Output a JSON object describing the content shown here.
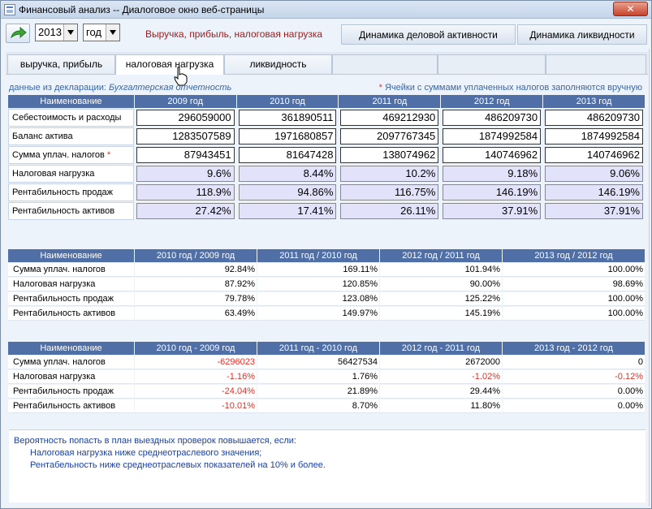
{
  "window": {
    "title": "Финансовый анализ -- Диалоговое окно веб-страницы",
    "close_label": "✕"
  },
  "toolbar": {
    "year_value": "2013",
    "period_value": "год",
    "tabs": [
      {
        "label": "Выручка, прибыль, налоговая нагрузка"
      },
      {
        "label": "Динамика деловой активности"
      },
      {
        "label": "Динамика ликвидности"
      }
    ]
  },
  "subtabs": [
    {
      "label": "выручка, прибыль"
    },
    {
      "label": "налоговая нагрузка"
    },
    {
      "label": "ликвидность"
    }
  ],
  "notes": {
    "left_prefix": "данные из декларации:",
    "left_source": "Бухгалтерская отчетность",
    "right_star": "*",
    "right_text": "Ячейки с суммами уплаченных налогов заполняются вручную"
  },
  "table1": {
    "headers": [
      "Наименование",
      "2009 год",
      "2010 год",
      "2011 год",
      "2012 год",
      "2013 год"
    ],
    "rows": [
      {
        "label": "Себестоимость и расходы",
        "star": "",
        "values": [
          "296059000",
          "361890511",
          "469212930",
          "486209730",
          "486209730"
        ]
      },
      {
        "label": "Баланс актива",
        "star": "",
        "values": [
          "1283507589",
          "1971680857",
          "2097767345",
          "1874992584",
          "1874992584"
        ]
      },
      {
        "label": "Сумма уплач. налогов",
        "star": "*",
        "values": [
          "87943451",
          "81647428",
          "138074962",
          "140746962",
          "140746962"
        ]
      },
      {
        "label": "Налоговая нагрузка",
        "star": "",
        "values": [
          "9.6%",
          "8.44%",
          "10.2%",
          "9.18%",
          "9.06%"
        ]
      },
      {
        "label": "Рентабильность продаж",
        "star": "",
        "values": [
          "118.9%",
          "94.86%",
          "116.75%",
          "146.19%",
          "146.19%"
        ]
      },
      {
        "label": "Рентабильность активов",
        "star": "",
        "values": [
          "27.42%",
          "17.41%",
          "26.11%",
          "37.91%",
          "37.91%"
        ]
      }
    ]
  },
  "table2": {
    "headers": [
      "Наименование",
      "2010 год / 2009 год",
      "2011 год / 2010 год",
      "2012 год / 2011 год",
      "2013 год / 2012 год"
    ],
    "rows": [
      {
        "label": "Сумма уплач. налогов",
        "values": [
          "92.84%",
          "169.11%",
          "101.94%",
          "100.00%"
        ]
      },
      {
        "label": "Налоговая нагрузка",
        "values": [
          "87.92%",
          "120.85%",
          "90.00%",
          "98.69%"
        ]
      },
      {
        "label": "Рентабильность продаж",
        "values": [
          "79.78%",
          "123.08%",
          "125.22%",
          "100.00%"
        ]
      },
      {
        "label": "Рентабильность активов",
        "values": [
          "63.49%",
          "149.97%",
          "145.19%",
          "100.00%"
        ]
      }
    ]
  },
  "table3": {
    "headers": [
      "Наименование",
      "2010 год - 2009 год",
      "2011 год - 2010 год",
      "2012 год - 2011 год",
      "2013 год - 2012 год"
    ],
    "rows": [
      {
        "label": "Сумма уплач. налогов",
        "values": [
          "-6296023",
          "56427534",
          "2672000",
          "0"
        ]
      },
      {
        "label": "Налоговая нагрузка",
        "values": [
          "-1.16%",
          "1.76%",
          "-1.02%",
          "-0.12%"
        ]
      },
      {
        "label": "Рентабильность продаж",
        "values": [
          "-24.04%",
          "21.89%",
          "29.44%",
          "0.00%"
        ]
      },
      {
        "label": "Рентабильность активов",
        "values": [
          "-10.01%",
          "8.70%",
          "11.80%",
          "0.00%"
        ]
      }
    ]
  },
  "bottom_note": {
    "line1": "Вероятность попасть в план выездных проверок повышается, если:",
    "line2": "Налоговая нагрузка ниже среднеотраслевого значения;",
    "line3": "Рентабельность ниже среднеотраслевых показателей на 10% и более."
  },
  "colors": {
    "header_bg": "#4f6fa6",
    "negative": "#e3312a",
    "active_tab": "#9b1c1c",
    "note": "#1a3fa3"
  }
}
